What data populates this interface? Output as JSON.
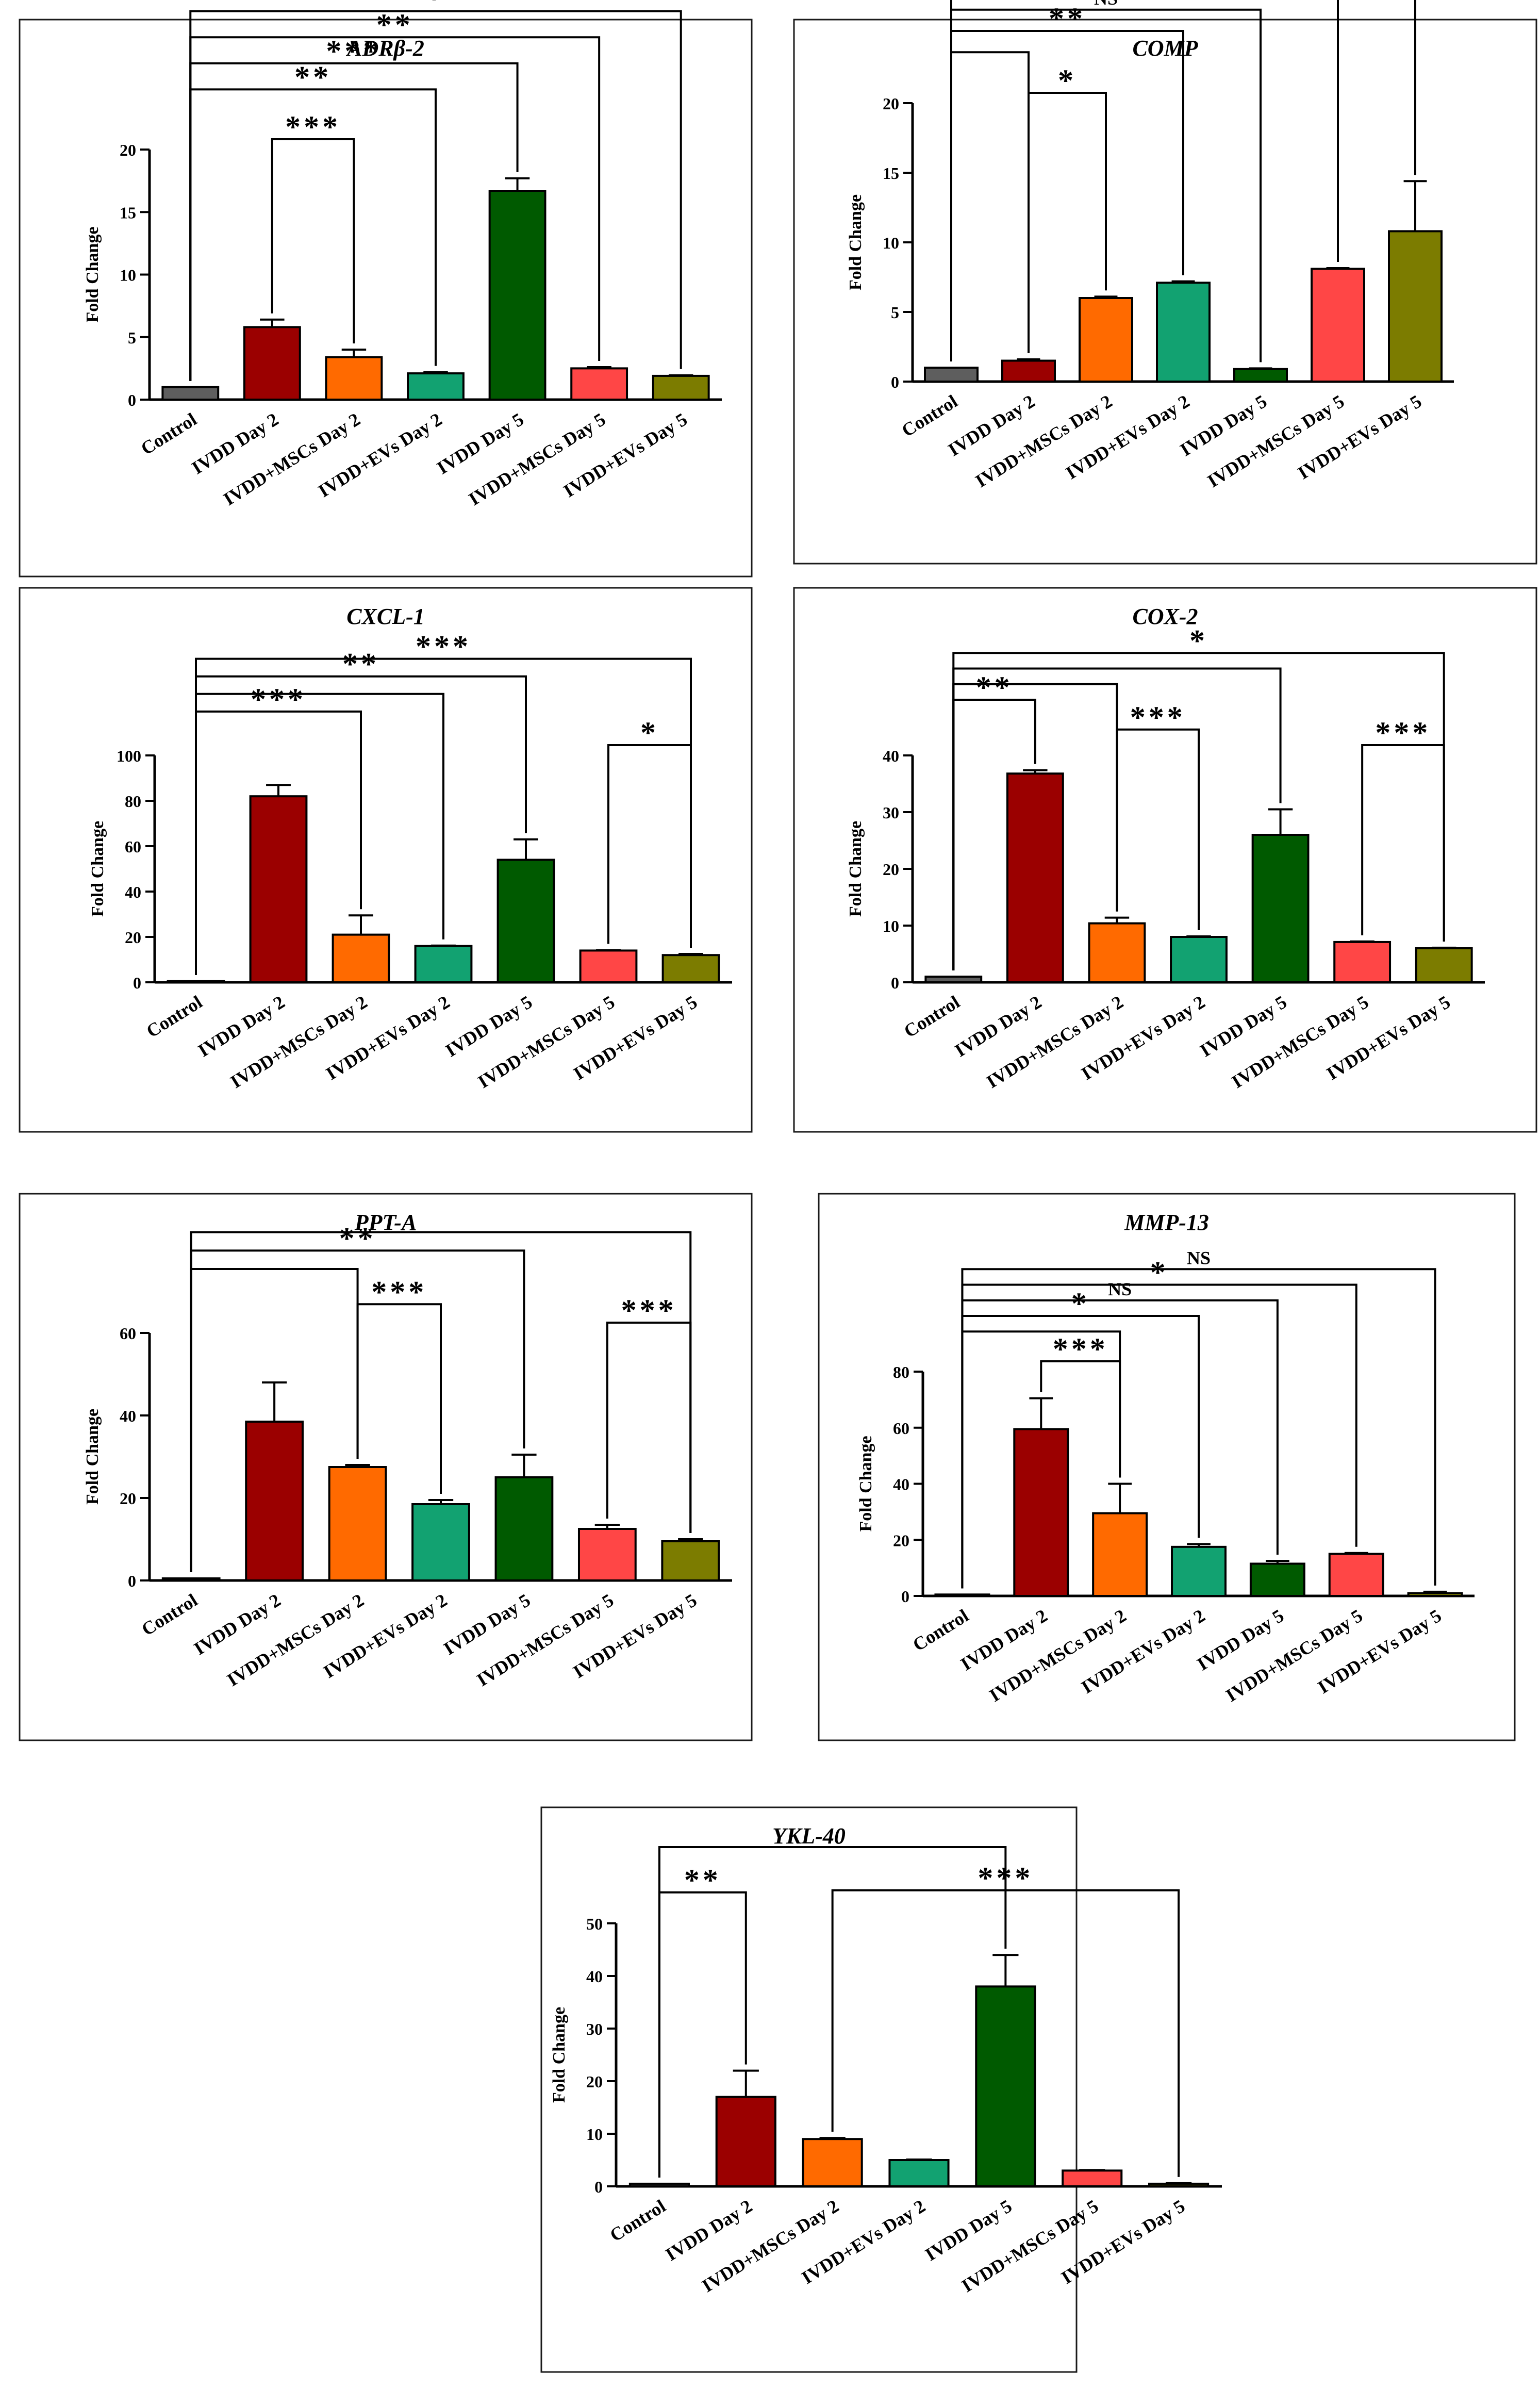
{
  "colors": {
    "Control": "#5e5e5e",
    "IVDD Day 2": "#9b0000",
    "IVDD+MSCs Day 2": "#ff6a00",
    "IVDD+EVs Day 2": "#12a271",
    "IVDD Day 5": "#005a00",
    "IVDD+MSCs Day 5": "#ff4646",
    "IVDD+EVs Day 5": "#7c7c00"
  },
  "chart_data": [
    {
      "type": "bar",
      "title": "ADRβ-2",
      "ylabel": "Fold Change",
      "ylim": [
        0,
        20
      ],
      "yticks": [
        0,
        5,
        10,
        15,
        20
      ],
      "categories": [
        "Control",
        "IVDD Day 2",
        "IVDD+MSCs Day 2",
        "IVDD+EVs Day 2",
        "IVDD Day 5",
        "IVDD+MSCs Day 5",
        "IVDD+EVs Day 5"
      ],
      "values": [
        1.0,
        5.8,
        3.4,
        2.1,
        16.7,
        2.5,
        1.9
      ],
      "errors": [
        0,
        0.6,
        0.6,
        0.1,
        1.0,
        0.1,
        0.05
      ],
      "comparisons": [
        {
          "from": 0,
          "to": 6,
          "label": "*"
        },
        {
          "from": 0,
          "to": 5,
          "label": "**"
        },
        {
          "from": 0,
          "to": 4,
          "label": "***"
        },
        {
          "from": 0,
          "to": 3,
          "label": "**"
        },
        {
          "from": 1,
          "to": 2,
          "label": "***"
        }
      ]
    },
    {
      "type": "bar",
      "title": "COMP",
      "ylabel": "Fold Change",
      "ylim": [
        0,
        20
      ],
      "yticks": [
        0,
        5,
        10,
        15,
        20
      ],
      "categories": [
        "Control",
        "IVDD Day 2",
        "IVDD+MSCs Day 2",
        "IVDD+EVs Day 2",
        "IVDD Day 5",
        "IVDD+MSCs Day 5",
        "IVDD+EVs Day 5"
      ],
      "values": [
        1.0,
        1.5,
        6.0,
        7.1,
        0.9,
        8.1,
        10.8
      ],
      "errors": [
        0,
        0.1,
        0.1,
        0.1,
        0.05,
        0.05,
        3.6
      ],
      "comparisons": [
        {
          "from": 0,
          "to": 6,
          "label": "***"
        },
        {
          "from": 0,
          "to": 5,
          "label": "**"
        },
        {
          "from": 0,
          "to": 4,
          "label": "NS"
        },
        {
          "from": 0,
          "to": 3,
          "label": "**"
        },
        {
          "from": 0,
          "to": 1,
          "label": "",
          "tip": true
        },
        {
          "from": 1,
          "to": 2,
          "label": "*"
        }
      ]
    },
    {
      "type": "bar",
      "title": "CXCL-1",
      "ylabel": "Fold Change",
      "ylim": [
        0,
        100
      ],
      "yticks": [
        0,
        20,
        40,
        60,
        80,
        100
      ],
      "categories": [
        "Control",
        "IVDD Day 2",
        "IVDD+MSCs Day 2",
        "IVDD+EVs Day 2",
        "IVDD Day 5",
        "IVDD+MSCs Day 5",
        "IVDD+EVs Day 5"
      ],
      "values": [
        0.5,
        82,
        21,
        16,
        54,
        14,
        12
      ],
      "errors": [
        0,
        5,
        8.5,
        0.2,
        9,
        0.2,
        0.5
      ],
      "comparisons": [
        {
          "from": 0,
          "to": 6,
          "label": "***"
        },
        {
          "from": 0,
          "to": 4,
          "label": "**"
        },
        {
          "from": 0,
          "to": 3,
          "label": ""
        },
        {
          "from": 0,
          "to": 2,
          "label": "***"
        },
        {
          "from": 5,
          "to": 6,
          "label": "*"
        }
      ]
    },
    {
      "type": "bar",
      "title": "COX-2",
      "ylabel": "Fold Change",
      "ylim": [
        0,
        40
      ],
      "yticks": [
        0,
        10,
        20,
        30,
        40
      ],
      "categories": [
        "Control",
        "IVDD Day 2",
        "IVDD+MSCs Day 2",
        "IVDD+EVs Day 2",
        "IVDD Day 5",
        "IVDD+MSCs Day 5",
        "IVDD+EVs Day 5"
      ],
      "values": [
        1.0,
        36.8,
        10.4,
        8.0,
        26.0,
        7.1,
        6.0
      ],
      "errors": [
        0,
        0.6,
        1.0,
        0.1,
        4.5,
        0.1,
        0.1
      ],
      "comparisons": [
        {
          "from": 0,
          "to": 6,
          "label": "*"
        },
        {
          "from": 0,
          "to": 4,
          "label": ""
        },
        {
          "from": 0,
          "to": 2,
          "label": ""
        },
        {
          "from": 0,
          "to": 1,
          "label": "**",
          "tip": true
        },
        {
          "from": 2,
          "to": 3,
          "label": "***"
        },
        {
          "from": 5,
          "to": 6,
          "label": "***"
        }
      ]
    },
    {
      "type": "bar",
      "title": "PPT-A",
      "ylabel": "Fold Change",
      "ylim": [
        0,
        60
      ],
      "yticks": [
        0,
        20,
        40,
        60
      ],
      "categories": [
        "Control",
        "IVDD Day 2",
        "IVDD+MSCs Day 2",
        "IVDD+EVs Day 2",
        "IVDD Day 5",
        "IVDD+MSCs Day 5",
        "IVDD+EVs Day 5"
      ],
      "values": [
        0.5,
        38.5,
        27.5,
        18.5,
        25.0,
        12.5,
        9.5
      ],
      "errors": [
        0,
        9.5,
        0.5,
        1.0,
        5.5,
        1.0,
        0.5
      ],
      "comparisons": [
        {
          "from": 0,
          "to": 6,
          "label": ""
        },
        {
          "from": 0,
          "to": 4,
          "label": "**"
        },
        {
          "from": 0,
          "to": 2,
          "label": "",
          "tip": true
        },
        {
          "from": 2,
          "to": 3,
          "label": "***"
        },
        {
          "from": 5,
          "to": 6,
          "label": "***"
        }
      ]
    },
    {
      "type": "bar",
      "title": "MMP-13",
      "ylabel": "Fold Change",
      "ylim": [
        0,
        80
      ],
      "yticks": [
        0,
        20,
        40,
        60,
        80
      ],
      "categories": [
        "Control",
        "IVDD Day 2",
        "IVDD+MSCs Day 2",
        "IVDD+EVs Day 2",
        "IVDD Day 5",
        "IVDD+MSCs Day 5",
        "IVDD+EVs Day 5"
      ],
      "values": [
        0.5,
        59.5,
        29.5,
        17.5,
        11.5,
        15.0,
        1.0
      ],
      "errors": [
        0,
        11,
        10.5,
        1.0,
        1.0,
        0.3,
        0.5
      ],
      "comparisons": [
        {
          "from": 0,
          "to": 6,
          "label": "NS"
        },
        {
          "from": 0,
          "to": 5,
          "label": "*"
        },
        {
          "from": 0,
          "to": 4,
          "label": "NS"
        },
        {
          "from": 0,
          "to": 3,
          "label": "*"
        },
        {
          "from": 0,
          "to": 2,
          "label": ""
        },
        {
          "from": 1,
          "to": 2,
          "label": "***"
        }
      ]
    },
    {
      "type": "bar",
      "title": "YKL-40",
      "ylabel": "Fold Change",
      "ylim": [
        0,
        50
      ],
      "yticks": [
        0,
        10,
        20,
        30,
        40,
        50
      ],
      "categories": [
        "Control",
        "IVDD Day 2",
        "IVDD+MSCs Day 2",
        "IVDD+EVs Day 2",
        "IVDD Day 5",
        "IVDD+MSCs Day 5",
        "IVDD+EVs Day 5"
      ],
      "values": [
        0.5,
        17.0,
        9.0,
        5.0,
        38.0,
        3.0,
        0.5
      ],
      "errors": [
        0,
        5.0,
        0.2,
        0.1,
        6.0,
        0.1,
        0.1
      ],
      "comparisons": [
        {
          "from": 0,
          "to": 4,
          "label": ""
        },
        {
          "from": 2,
          "to": 6,
          "label": "***"
        },
        {
          "from": 0,
          "to": 1,
          "label": "**"
        }
      ]
    }
  ]
}
